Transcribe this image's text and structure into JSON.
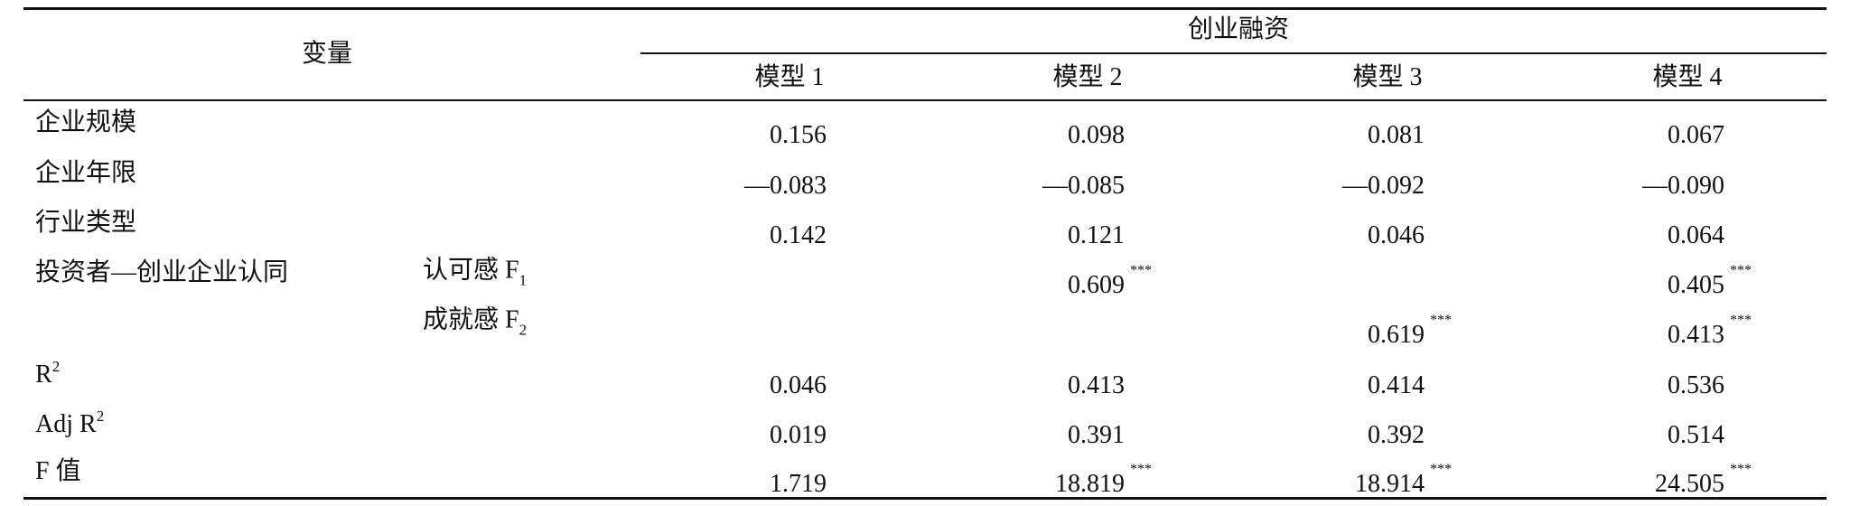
{
  "table": {
    "header": {
      "variable": "变量",
      "group": "创业融资",
      "models": [
        "模型 1",
        "模型 2",
        "模型 3",
        "模型 4"
      ]
    },
    "rows": [
      {
        "label": "企业规模",
        "values": [
          "0.156",
          "0.098",
          "0.081",
          "0.067"
        ],
        "sig": [
          null,
          null,
          null,
          null
        ]
      },
      {
        "label": "企业年限",
        "values": [
          "—0.083",
          "—0.085",
          "—0.092",
          "—0.090"
        ],
        "sig": [
          null,
          null,
          null,
          null
        ]
      },
      {
        "label": "行业类型",
        "values": [
          "0.142",
          "0.121",
          "0.046",
          "0.064"
        ],
        "sig": [
          null,
          null,
          null,
          null
        ]
      },
      {
        "label": "投资者—创业企业认同",
        "sublabel": "认可感 F",
        "sublabel_sub": "1",
        "values": [
          null,
          "0.609",
          null,
          "0.405"
        ],
        "sig": [
          null,
          "***",
          null,
          "***"
        ]
      },
      {
        "sublabel": "成就感 F",
        "sublabel_sub": "2",
        "values": [
          null,
          null,
          "0.619",
          "0.413"
        ],
        "sig": [
          null,
          null,
          "***",
          "***"
        ]
      },
      {
        "label": "R",
        "label_sup": "2",
        "values": [
          "0.046",
          "0.413",
          "0.414",
          "0.536"
        ],
        "sig": [
          null,
          null,
          null,
          null
        ]
      },
      {
        "label": "Adj R",
        "label_sup": "2",
        "values": [
          "0.019",
          "0.391",
          "0.392",
          "0.514"
        ],
        "sig": [
          null,
          null,
          null,
          null
        ]
      },
      {
        "label": "F 值",
        "values": [
          "1.719",
          "18.819",
          "18.914",
          "24.505"
        ],
        "sig": [
          null,
          "***",
          "***",
          "***"
        ]
      }
    ]
  }
}
